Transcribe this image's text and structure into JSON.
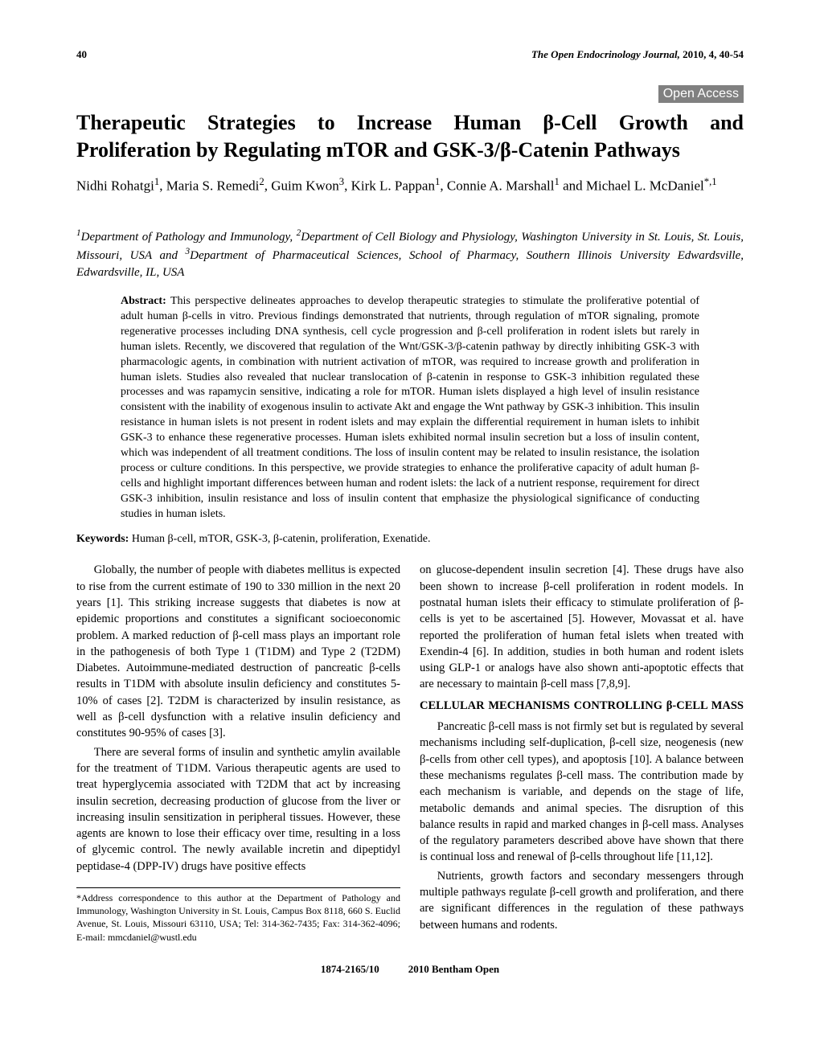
{
  "header": {
    "page_number": "40",
    "journal": "The Open Endocrinology Journal,",
    "year_vol_pg": " 2010, 4, 40-54"
  },
  "open_access": "Open Access",
  "title_line1": "Therapeutic Strategies to Increase Human β-Cell Growth and",
  "title_line2": "Proliferation by Regulating mTOR and GSK-3/β-Catenin Pathways",
  "authors_html": "Nidhi Rohatgi<sup>1</sup>, Maria S. Remedi<sup>2</sup>, Guim Kwon<sup>3</sup>, Kirk L. Pappan<sup>1</sup>, Connie A. Marshall<sup>1</sup> and Michael L. McDaniel<sup>*,1</sup>",
  "affiliations_html": "<sup>1</sup>Department of Pathology and Immunology, <sup>2</sup>Department of Cell Biology and Physiology, Washington University in St. Louis, St. Louis, Missouri, USA and <sup>3</sup>Department of Pharmaceutical Sciences, School of Pharmacy, Southern Illinois University Edwardsville, Edwardsville, IL, USA",
  "abstract_label": "Abstract:",
  "abstract_text": " This perspective delineates approaches to develop therapeutic strategies to stimulate the proliferative potential of adult human β-cells in vitro. Previous findings demonstrated that nutrients, through regulation of mTOR signaling, promote regenerative processes including DNA synthesis, cell cycle progression and β-cell proliferation in rodent islets but rarely in human islets. Recently, we discovered that regulation of the Wnt/GSK-3/β-catenin pathway by directly inhibiting GSK-3 with pharmacologic agents, in combination with nutrient activation of mTOR, was required to increase growth and proliferation in human islets. Studies also revealed that nuclear translocation of β-catenin in response to GSK-3 inhibition regulated these processes and was rapamycin sensitive, indicating a role for mTOR. Human islets displayed a high level of insulin resistance consistent with the inability of exogenous insulin to activate Akt and engage the Wnt pathway by GSK-3 inhibition. This insulin resistance in human islets is not present in rodent islets and may explain the differential requirement in human islets to inhibit GSK-3 to enhance these regenerative processes. Human islets exhibited normal insulin secretion but a loss of insulin content, which was independent of all treatment conditions. The loss of insulin content may be related to insulin resistance, the isolation process or culture conditions. In this perspective, we provide strategies to enhance the proliferative capacity of adult human β-cells and highlight important differences between human and rodent islets: the lack of a nutrient response, requirement for direct GSK-3 inhibition, insulin resistance and loss of insulin content that emphasize the physiological significance of conducting studies in human islets.",
  "keywords_label": "Keywords:",
  "keywords_text": " Human β-cell, mTOR, GSK-3, β-catenin, proliferation, Exenatide.",
  "col1_p1": "Globally, the number of people with diabetes mellitus is expected to rise from the current estimate of 190 to 330 million in the next 20 years [1]. This striking increase suggests that diabetes is now at epidemic proportions and constitutes a significant socioeconomic problem. A marked reduction of β-cell mass plays an important role in the pathogenesis of both Type 1 (T1DM) and Type 2 (T2DM) Diabetes. Autoimmune-mediated destruction of pancreatic β-cells results in T1DM with absolute insulin deficiency and constitutes 5-10% of cases [2]. T2DM is characterized by insulin resistance, as well as β-cell dysfunction with a relative insulin deficiency and constitutes 90-95% of cases [3].",
  "col1_p2": "There are several forms of insulin and synthetic amylin available for the treatment of T1DM. Various therapeutic agents are used to treat hyperglycemia associated with T2DM that act by increasing insulin secretion, decreasing production of glucose from the liver or increasing insulin sensitization in peripheral tissues. However, these agents are known to lose their efficacy over time, resulting in a loss of glycemic control. The newly available incretin and dipeptidyl peptidase-4 (DPP-IV) drugs have positive effects",
  "correspondence": "*Address correspondence to this author at the Department of Pathology and Immunology, Washington University in St. Louis, Campus Box 8118, 660 S. Euclid Avenue, St. Louis, Missouri 63110, USA; Tel: 314-362-7435; Fax: 314-362-4096; E-mail: mmcdaniel@wustl.edu",
  "col2_p1": "on glucose-dependent insulin secretion [4]. These drugs have also been shown to increase β-cell proliferation in rodent models. In postnatal human islets their efficacy to stimulate proliferation of β-cells is yet to be ascertained [5]. However, Movassat et al. have reported the proliferation of human fetal islets when treated with Exendin-4 [6]. In addition, studies in both human and rodent islets using GLP-1 or analogs have also shown anti-apoptotic effects that are necessary to maintain β-cell mass [7,8,9].",
  "section_heading": "CELLULAR MECHANISMS CONTROLLING β-CELL MASS",
  "col2_p2": "Pancreatic β-cell mass is not firmly set but is regulated by several mechanisms including self-duplication, β-cell size, neogenesis (new β-cells from other cell types), and apoptosis [10]. A balance between these mechanisms regulates β-cell mass. The contribution made by each mechanism is variable, and depends on the stage of life, metabolic demands and animal species. The disruption of this balance results in rapid and marked changes in β-cell mass. Analyses of the regulatory parameters described above have shown that there is continual loss and renewal of β-cells throughout life [11,12].",
  "col2_p3": "Nutrients, growth factors and secondary messengers through multiple pathways regulate β-cell growth and proliferation, and there are significant differences in the regulation of these pathways between humans and rodents.",
  "footer_left": "1874-2165/10",
  "footer_right": "2010 Bentham Open"
}
